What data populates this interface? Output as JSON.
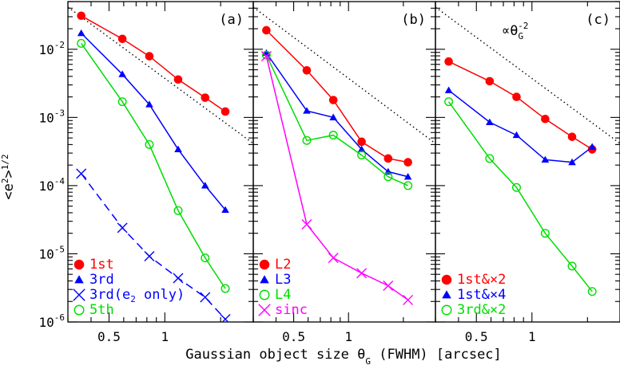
{
  "figure": {
    "ylabel": "<e²>^1/2",
    "xlabel": "Gaussian object size θ_G (FWHM) [arcsec]"
  },
  "colors": {
    "red": "#ff0000",
    "blue": "#0000ff",
    "green": "#00dd00",
    "magenta": "#ff00ff",
    "black": "#000000"
  },
  "chart_data": [
    {
      "type": "line",
      "panel_label": "(a)",
      "xscale": "log",
      "yscale": "log",
      "xlim": [
        0.3,
        3.0
      ],
      "ylim": [
        1e-06,
        0.05
      ],
      "x_ticks": [
        {
          "v": 0.5,
          "label": "0.5"
        },
        {
          "v": 1,
          "label": "1"
        }
      ],
      "y_ticks": [
        {
          "v": 0.01,
          "m": "10",
          "e": "-2"
        },
        {
          "v": 0.001,
          "m": "10",
          "e": "-3"
        },
        {
          "v": 0.0001,
          "m": "10",
          "e": "-4"
        },
        {
          "v": 1e-05,
          "m": "10",
          "e": "-5"
        },
        {
          "v": 1e-06,
          "m": "10",
          "e": "-6"
        }
      ],
      "reference_line": {
        "x": [
          0.3,
          3.0
        ],
        "y": [
          0.0415,
          0.000415
        ],
        "style": "dotted",
        "label": ""
      },
      "series": [
        {
          "name": "1st",
          "color": "red",
          "marker": "filled-circle",
          "dash": "solid",
          "x": [
            0.354,
            0.59,
            0.825,
            1.18,
            1.65,
            2.12
          ],
          "y": [
            0.031,
            0.0142,
            0.0079,
            0.0036,
            0.00195,
            0.00122
          ]
        },
        {
          "name": "3rd",
          "color": "blue",
          "marker": "filled-triangle",
          "dash": "solid",
          "x": [
            0.354,
            0.59,
            0.825,
            1.18,
            1.65,
            2.12
          ],
          "y": [
            0.0172,
            0.0043,
            0.00155,
            0.00034,
            0.0001,
            4.4e-05
          ]
        },
        {
          "name": "3rd(e",
          "name_sub": "2",
          "name_tail": " only)",
          "color": "blue",
          "marker": "cross",
          "dash": "dashed",
          "x": [
            0.354,
            0.59,
            0.825,
            1.18,
            1.65,
            2.12
          ],
          "y": [
            0.00015,
            2.4e-05,
            9.2e-06,
            4.4e-06,
            2.3e-06,
            1.1e-06
          ]
        },
        {
          "name": "5th",
          "color": "green",
          "marker": "open-circle",
          "dash": "solid",
          "x": [
            0.354,
            0.59,
            0.825,
            1.18,
            1.65,
            2.12
          ],
          "y": [
            0.0122,
            0.0017,
            0.0004,
            4.3e-05,
            8.7e-06,
            3.1e-06
          ]
        }
      ],
      "legend_order": [
        0,
        1,
        2,
        3
      ]
    },
    {
      "type": "line",
      "panel_label": "(b)",
      "xscale": "log",
      "yscale": "log",
      "xlim": [
        0.3,
        3.0
      ],
      "ylim": [
        1e-06,
        0.05
      ],
      "x_ticks": [
        {
          "v": 0.5,
          "label": "0.5"
        },
        {
          "v": 1,
          "label": "1"
        }
      ],
      "y_ticks": [],
      "reference_line": {
        "x": [
          0.3,
          3.0
        ],
        "y": [
          0.0415,
          0.000415
        ],
        "style": "dotted",
        "label": ""
      },
      "series": [
        {
          "name": "L2",
          "color": "red",
          "marker": "filled-circle",
          "dash": "solid",
          "x": [
            0.354,
            0.59,
            0.825,
            1.18,
            1.65,
            2.12
          ],
          "y": [
            0.019,
            0.0049,
            0.0018,
            0.00044,
            0.00025,
            0.00022
          ]
        },
        {
          "name": "L3",
          "color": "blue",
          "marker": "filled-triangle",
          "dash": "solid",
          "x": [
            0.354,
            0.59,
            0.825,
            1.18,
            1.65,
            2.12
          ],
          "y": [
            0.0088,
            0.00125,
            0.001,
            0.00034,
            0.00016,
            0.000135
          ]
        },
        {
          "name": "L4",
          "color": "green",
          "marker": "open-circle",
          "dash": "solid",
          "x": [
            0.354,
            0.59,
            0.825,
            1.18,
            1.65,
            2.12
          ],
          "y": [
            0.0082,
            0.00046,
            0.00055,
            0.00028,
            0.000135,
            0.0001
          ]
        },
        {
          "name": "sinc",
          "color": "magenta",
          "marker": "cross",
          "dash": "solid",
          "x": [
            0.354,
            0.59,
            0.825,
            1.18,
            1.65,
            2.12
          ],
          "y": [
            0.0079,
            2.7e-05,
            8.7e-06,
            5.2e-06,
            3.4e-06,
            2.1e-06
          ]
        }
      ],
      "legend_order": [
        0,
        1,
        2,
        3
      ]
    },
    {
      "type": "line",
      "panel_label": "(c)",
      "xscale": "log",
      "yscale": "log",
      "xlim": [
        0.3,
        3.0
      ],
      "ylim": [
        1e-06,
        0.05
      ],
      "x_ticks": [
        {
          "v": 0.5,
          "label": "0.5"
        },
        {
          "v": 1,
          "label": "1"
        }
      ],
      "y_ticks": [],
      "reference_line": {
        "x": [
          0.3,
          3.0
        ],
        "y": [
          0.0415,
          0.000415
        ],
        "style": "dotted",
        "label": "∝θ",
        "label_sub": "G",
        "label_sup": "-2"
      },
      "series": [
        {
          "name": "1st&×2",
          "color": "red",
          "marker": "filled-circle",
          "dash": "solid",
          "x": [
            0.354,
            0.59,
            0.825,
            1.18,
            1.65,
            2.12
          ],
          "y": [
            0.0066,
            0.0034,
            0.002,
            0.00095,
            0.00052,
            0.00034
          ]
        },
        {
          "name": "1st&×4",
          "color": "blue",
          "marker": "filled-triangle",
          "dash": "solid",
          "x": [
            0.354,
            0.59,
            0.825,
            1.18,
            1.65,
            2.12
          ],
          "y": [
            0.0025,
            0.00085,
            0.00055,
            0.00024,
            0.00022,
            0.00037
          ]
        },
        {
          "name": "3rd&×2",
          "color": "green",
          "marker": "open-circle",
          "dash": "solid",
          "x": [
            0.354,
            0.59,
            0.825,
            1.18,
            1.65,
            2.12
          ],
          "y": [
            0.0017,
            0.00025,
            9.4e-05,
            2e-05,
            6.6e-06,
            2.8e-06
          ]
        }
      ],
      "legend_order": [
        0,
        1,
        2
      ]
    }
  ]
}
